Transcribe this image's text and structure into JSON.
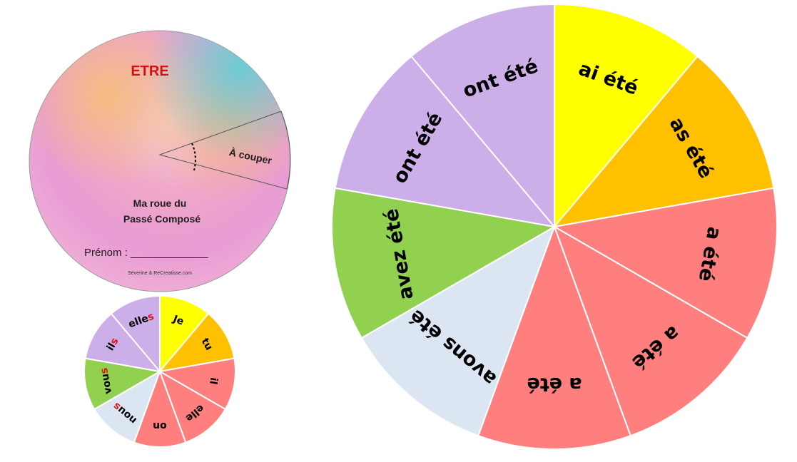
{
  "cover": {
    "title": "ETRE",
    "cut_label": "À couper",
    "subtitle_line1": "Ma roue du",
    "subtitle_line2": "Passé Composé",
    "prenom_label": "Prénom : _____________",
    "credit": "Séverine & ReCreatisse.com"
  },
  "pronoun_wheel": {
    "labels": [
      "Je",
      "tu",
      "il",
      "elle",
      "on",
      "nous",
      "vous",
      "ils",
      "elles"
    ],
    "highlight_s_color": "#e0141e"
  },
  "verb_wheel": {
    "labels": [
      "ai été",
      "as été",
      "a été",
      "a été",
      "a été",
      "avons été",
      "avez été",
      "ont été",
      "ont été"
    ]
  },
  "colors": {
    "yellow": "#ffff00",
    "orange": "#ffc000",
    "red": "#ff7f7f",
    "blue": "#dce6f2",
    "green": "#92d050",
    "purple": "#ccaee8"
  }
}
